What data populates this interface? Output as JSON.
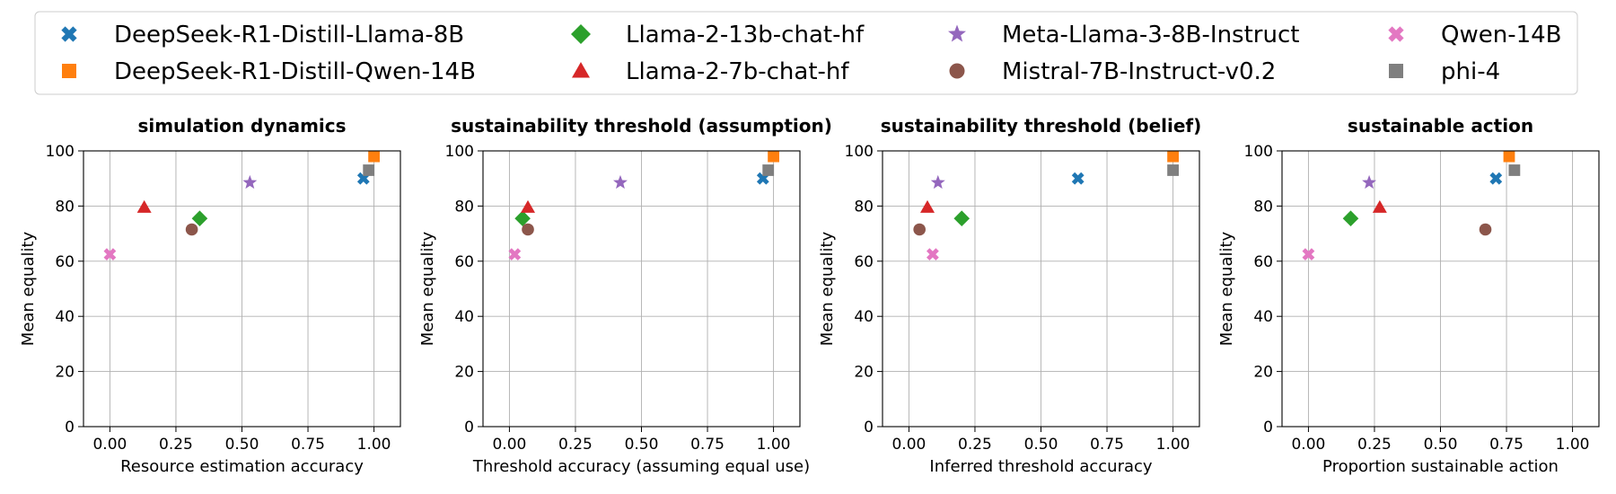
{
  "chart_data": {
    "type": "scatter",
    "legend": {
      "placement": "top",
      "entries": [
        {
          "name": "DeepSeek-R1-Distill-Llama-8B",
          "marker": "x-thick",
          "color": "#1f77b4"
        },
        {
          "name": "DeepSeek-R1-Distill-Qwen-14B",
          "marker": "square",
          "color": "#ff7f0e"
        },
        {
          "name": "Llama-2-13b-chat-hf",
          "marker": "diamond",
          "color": "#2ca02c"
        },
        {
          "name": "Llama-2-7b-chat-hf",
          "marker": "triangle",
          "color": "#d62728"
        },
        {
          "name": "Meta-Llama-3-8B-Instruct",
          "marker": "star",
          "color": "#9467bd"
        },
        {
          "name": "Mistral-7B-Instruct-v0.2",
          "marker": "circle",
          "color": "#8c564b"
        },
        {
          "name": "Qwen-14B",
          "marker": "x-thick",
          "color": "#e377c2"
        },
        {
          "name": "phi-4",
          "marker": "square",
          "color": "#7f7f7f"
        }
      ]
    },
    "ylabel": "Mean equality",
    "ylim": [
      0,
      100
    ],
    "yticks": [
      "0",
      "20",
      "40",
      "60",
      "80",
      "100"
    ],
    "xlim": [
      -0.1,
      1.1
    ],
    "xticks": [
      "0.00",
      "0.25",
      "0.50",
      "0.75",
      "1.00"
    ],
    "grid": true,
    "panels": [
      {
        "title": "simulation dynamics",
        "xlabel": "Resource estimation accuracy",
        "points": [
          {
            "series": "DeepSeek-R1-Distill-Llama-8B",
            "x": 0.96,
            "y": 90
          },
          {
            "series": "DeepSeek-R1-Distill-Qwen-14B",
            "x": 1.0,
            "y": 98
          },
          {
            "series": "Llama-2-13b-chat-hf",
            "x": 0.34,
            "y": 75.5
          },
          {
            "series": "Llama-2-7b-chat-hf",
            "x": 0.13,
            "y": 79.5
          },
          {
            "series": "Meta-Llama-3-8B-Instruct",
            "x": 0.53,
            "y": 88.5
          },
          {
            "series": "Mistral-7B-Instruct-v0.2",
            "x": 0.31,
            "y": 71.5
          },
          {
            "series": "Qwen-14B",
            "x": 0.0,
            "y": 62.5
          },
          {
            "series": "phi-4",
            "x": 0.98,
            "y": 93
          }
        ]
      },
      {
        "title": "sustainability threshold (assumption)",
        "xlabel": "Threshold accuracy (assuming equal use)",
        "points": [
          {
            "series": "DeepSeek-R1-Distill-Llama-8B",
            "x": 0.96,
            "y": 90
          },
          {
            "series": "DeepSeek-R1-Distill-Qwen-14B",
            "x": 1.0,
            "y": 98
          },
          {
            "series": "Llama-2-13b-chat-hf",
            "x": 0.05,
            "y": 75.5
          },
          {
            "series": "Llama-2-7b-chat-hf",
            "x": 0.07,
            "y": 79.5
          },
          {
            "series": "Meta-Llama-3-8B-Instruct",
            "x": 0.42,
            "y": 88.5
          },
          {
            "series": "Mistral-7B-Instruct-v0.2",
            "x": 0.07,
            "y": 71.5
          },
          {
            "series": "Qwen-14B",
            "x": 0.02,
            "y": 62.5
          },
          {
            "series": "phi-4",
            "x": 0.98,
            "y": 93
          }
        ]
      },
      {
        "title": "sustainability threshold (belief)",
        "xlabel": "Inferred threshold accuracy",
        "points": [
          {
            "series": "DeepSeek-R1-Distill-Llama-8B",
            "x": 0.64,
            "y": 90
          },
          {
            "series": "DeepSeek-R1-Distill-Qwen-14B",
            "x": 1.0,
            "y": 98
          },
          {
            "series": "Llama-2-13b-chat-hf",
            "x": 0.2,
            "y": 75.5
          },
          {
            "series": "Llama-2-7b-chat-hf",
            "x": 0.07,
            "y": 79.5
          },
          {
            "series": "Meta-Llama-3-8B-Instruct",
            "x": 0.11,
            "y": 88.5
          },
          {
            "series": "Mistral-7B-Instruct-v0.2",
            "x": 0.04,
            "y": 71.5
          },
          {
            "series": "Qwen-14B",
            "x": 0.09,
            "y": 62.5
          },
          {
            "series": "phi-4",
            "x": 1.0,
            "y": 93
          }
        ]
      },
      {
        "title": "sustainable action",
        "xlabel": "Proportion sustainable action",
        "points": [
          {
            "series": "DeepSeek-R1-Distill-Llama-8B",
            "x": 0.71,
            "y": 90
          },
          {
            "series": "DeepSeek-R1-Distill-Qwen-14B",
            "x": 0.76,
            "y": 98
          },
          {
            "series": "Llama-2-13b-chat-hf",
            "x": 0.16,
            "y": 75.5
          },
          {
            "series": "Llama-2-7b-chat-hf",
            "x": 0.27,
            "y": 79.5
          },
          {
            "series": "Meta-Llama-3-8B-Instruct",
            "x": 0.23,
            "y": 88.5
          },
          {
            "series": "Mistral-7B-Instruct-v0.2",
            "x": 0.67,
            "y": 71.5
          },
          {
            "series": "Qwen-14B",
            "x": 0.0,
            "y": 62.5
          },
          {
            "series": "phi-4",
            "x": 0.78,
            "y": 93
          }
        ]
      }
    ]
  }
}
